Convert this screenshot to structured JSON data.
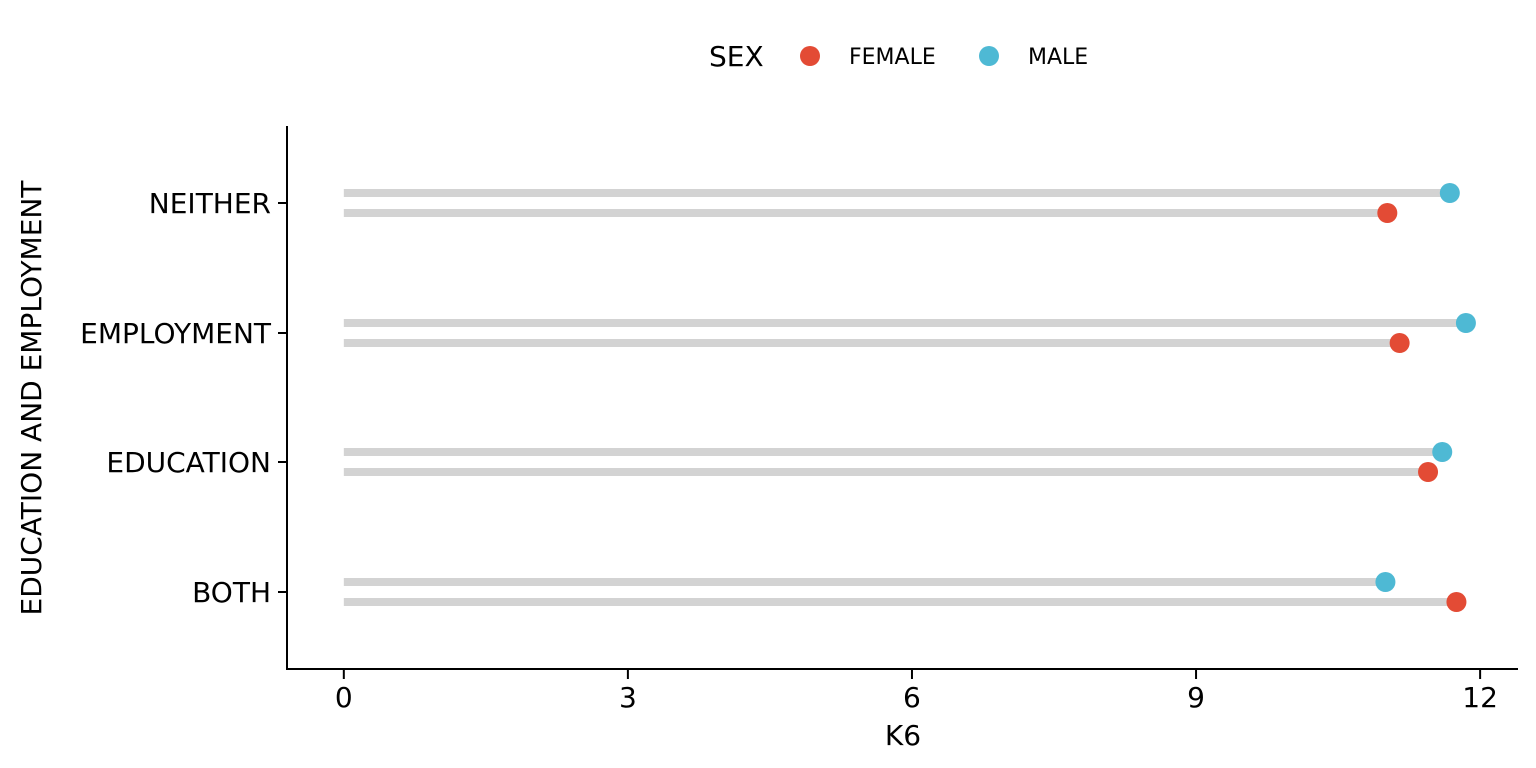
{
  "chart_data": {
    "type": "lollipop",
    "orientation": "horizontal",
    "title": "",
    "xlabel": "K6",
    "ylabel": "EDUCATION AND EMPLOYMENT",
    "xlim": [
      -0.6,
      12.4
    ],
    "x_ticks": [
      0,
      3,
      6,
      9,
      12
    ],
    "categories": [
      "BOTH",
      "EDUCATION",
      "EMPLOYMENT",
      "NEITHER"
    ],
    "legend": {
      "title": "SEX",
      "position": "top"
    },
    "stem_color": "#d3d3d3",
    "grid": false,
    "series": [
      {
        "name": "MALE",
        "color": "#4eb9d4",
        "values": [
          11.0,
          11.6,
          11.85,
          11.68
        ]
      },
      {
        "name": "FEMALE",
        "color": "#e34b35",
        "values": [
          11.75,
          11.45,
          11.15,
          11.02
        ]
      }
    ]
  }
}
